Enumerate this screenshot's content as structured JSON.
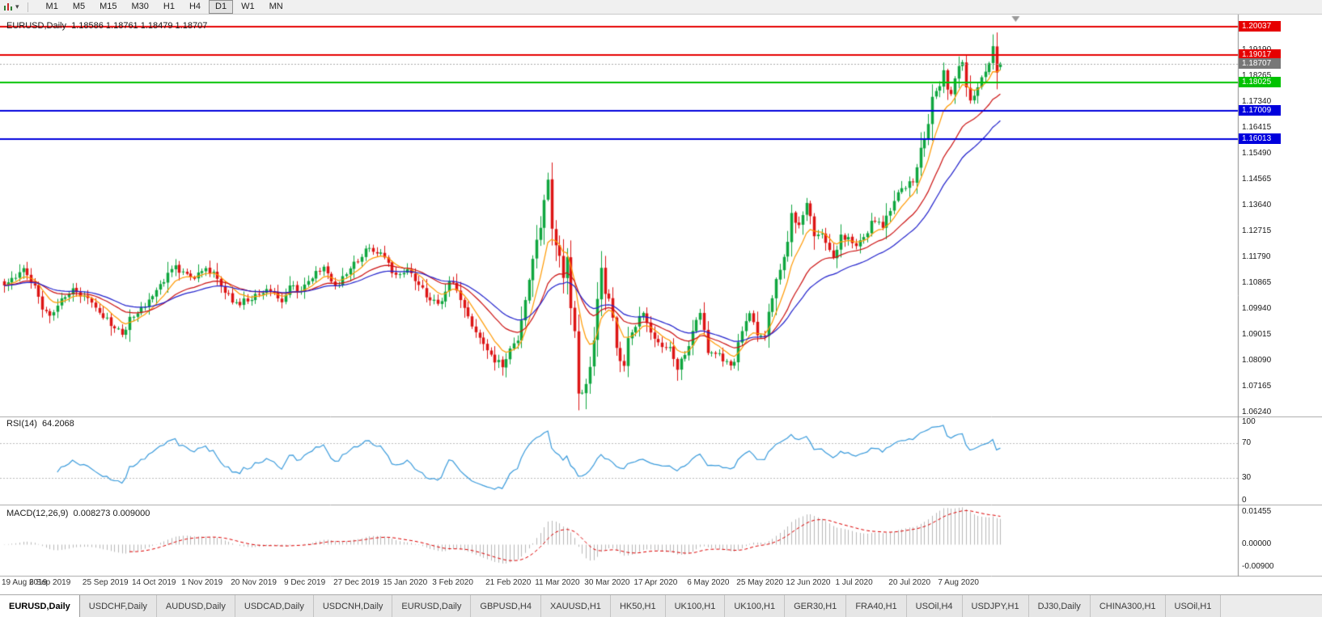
{
  "toolbar": {
    "timeframes": [
      "M1",
      "M5",
      "M15",
      "M30",
      "H1",
      "H4",
      "D1",
      "W1",
      "MN"
    ],
    "active": "D1"
  },
  "chart": {
    "symbol_title": "EURUSD,Daily",
    "ohlc_text": "1.18586 1.18761 1.18479 1.18707",
    "rsi_label": "RSI(14)",
    "rsi_value": "64.2068",
    "macd_label": "MACD(12,26,9)",
    "macd_values": "0.008273 0.009000"
  },
  "chart_data": {
    "type": "candlestick",
    "symbol": "EURUSD",
    "timeframe": "Daily",
    "current_ohlc": {
      "open": 1.18586,
      "high": 1.18761,
      "low": 1.18479,
      "close": 1.18707
    },
    "price_range": {
      "top": 1.2046,
      "bottom": 1.0613
    },
    "y_ticks": [
      "1.19190",
      "1.18265",
      "1.17340",
      "1.16415",
      "1.15490",
      "1.14565",
      "1.13640",
      "1.12715",
      "1.11790",
      "1.10865",
      "1.09940",
      "1.09015",
      "1.08090",
      "1.07165",
      "1.06240"
    ],
    "x_labels": [
      "19 Aug 2019",
      "6 Sep 2019",
      "25 Sep 2019",
      "14 Oct 2019",
      "1 Nov 2019",
      "20 Nov 2019",
      "9 Dec 2019",
      "27 Dec 2019",
      "15 Jan 2020",
      "3 Feb 2020",
      "21 Feb 2020",
      "11 Mar 2020",
      "30 Mar 2020",
      "17 Apr 2020",
      "6 May 2020",
      "25 May 2020",
      "12 Jun 2020",
      "1 Jul 2020",
      "20 Jul 2020",
      "7 Aug 2020"
    ],
    "horizontal_lines": [
      {
        "price": 1.20037,
        "label": "1.20037",
        "color": "#e60000"
      },
      {
        "price": 1.19017,
        "label": "1.19017",
        "color": "#e60000"
      },
      {
        "price": 1.18025,
        "label": "1.18025",
        "color": "#00c200"
      },
      {
        "price": 1.17009,
        "label": "1.17009",
        "color": "#0000dd"
      },
      {
        "price": 1.16013,
        "label": "1.16013",
        "color": "#0000dd"
      }
    ],
    "current_price_tag": {
      "label": "1.18707",
      "color": "#777777"
    },
    "colors": {
      "up": "#0fa63f",
      "down": "#dd1414"
    },
    "moving_averages": [
      {
        "period": 8,
        "color": "#ff9900"
      },
      {
        "period": 21,
        "color": "#cc1111"
      },
      {
        "period": 34,
        "color": "#2121cc"
      }
    ],
    "rsi": {
      "period": 14,
      "color": "#3a9bdc",
      "levels": [
        70,
        30
      ],
      "ticks": [
        "100",
        "70",
        "30",
        "0"
      ]
    },
    "macd": {
      "fast": 12,
      "slow": 26,
      "signal": 9,
      "histogram_color": "#b8b8b8",
      "signal_color": "#dd0000",
      "ticks": [
        "0.01455",
        "0.00000",
        "-0.00900"
      ],
      "range": {
        "top": 0.0152,
        "bottom": -0.0125
      }
    },
    "close_anchors": [
      [
        0,
        1.1078
      ],
      [
        2,
        1.1105
      ],
      [
        5,
        1.114
      ],
      [
        8,
        1.1078
      ],
      [
        10,
        1.0992
      ],
      [
        12,
        1.097
      ],
      [
        15,
        1.1032
      ],
      [
        18,
        1.1068
      ],
      [
        21,
        1.1042
      ],
      [
        23,
        1.1017
      ],
      [
        26,
        1.0962
      ],
      [
        29,
        1.0925
      ],
      [
        31,
        1.0902
      ],
      [
        33,
        1.0966
      ],
      [
        36,
        1.1
      ],
      [
        39,
        1.104
      ],
      [
        42,
        1.109
      ],
      [
        45,
        1.115
      ],
      [
        47,
        1.1128
      ],
      [
        50,
        1.1102
      ],
      [
        53,
        1.114
      ],
      [
        55,
        1.1127
      ],
      [
        58,
        1.1052
      ],
      [
        61,
        1.1018
      ],
      [
        64,
        1.1021
      ],
      [
        67,
        1.1046
      ],
      [
        70,
        1.1058
      ],
      [
        73,
        1.1018
      ],
      [
        75,
        1.1078
      ],
      [
        78,
        1.1059
      ],
      [
        82,
        1.113
      ],
      [
        84,
        1.1145
      ],
      [
        87,
        1.1078
      ],
      [
        90,
        1.1118
      ],
      [
        94,
        1.118
      ],
      [
        96,
        1.1212
      ],
      [
        99,
        1.1196
      ],
      [
        102,
        1.1122
      ],
      [
        106,
        1.1136
      ],
      [
        109,
        1.108
      ],
      [
        112,
        1.1025
      ],
      [
        115,
        1.1022
      ],
      [
        117,
        1.1093
      ],
      [
        119,
        1.106
      ],
      [
        121,
        1.0998
      ],
      [
        124,
        1.0911
      ],
      [
        128,
        1.0831
      ],
      [
        131,
        1.0786
      ],
      [
        133,
        1.0853
      ],
      [
        135,
        1.0881
      ],
      [
        137,
        1.1026
      ],
      [
        139,
        1.1173
      ],
      [
        141,
        1.1284
      ],
      [
        143,
        1.1456
      ],
      [
        144,
        1.1281
      ],
      [
        146,
        1.1184
      ],
      [
        147,
        1.1105
      ],
      [
        148,
        1.118
      ],
      [
        149,
        1.0997
      ],
      [
        150,
        1.0915
      ],
      [
        151,
        1.0692
      ],
      [
        152,
        1.0695
      ],
      [
        153,
        1.0726
      ],
      [
        154,
        1.0787
      ],
      [
        155,
        1.0882
      ],
      [
        156,
        1.103
      ],
      [
        157,
        1.1141
      ],
      [
        158,
        1.1048
      ],
      [
        159,
        1.1031
      ],
      [
        160,
        1.0963
      ],
      [
        161,
        1.0855
      ],
      [
        162,
        1.0808
      ],
      [
        163,
        1.0791
      ],
      [
        164,
        1.089
      ],
      [
        166,
        1.093
      ],
      [
        168,
        1.098
      ],
      [
        170,
        1.091
      ],
      [
        172,
        1.0875
      ],
      [
        175,
        1.0858
      ],
      [
        177,
        1.0777
      ],
      [
        179,
        1.083
      ],
      [
        182,
        1.0955
      ],
      [
        183,
        1.098
      ],
      [
        185,
        1.0837
      ],
      [
        187,
        1.0834
      ],
      [
        189,
        1.0807
      ],
      [
        192,
        1.0805
      ],
      [
        194,
        1.0915
      ],
      [
        196,
        1.0979
      ],
      [
        198,
        1.09
      ],
      [
        200,
        1.0898
      ],
      [
        201,
        1.0984
      ],
      [
        203,
        1.1101
      ],
      [
        204,
        1.1134
      ],
      [
        206,
        1.1234
      ],
      [
        207,
        1.1337
      ],
      [
        209,
        1.1294
      ],
      [
        211,
        1.1373
      ],
      [
        213,
        1.1254
      ],
      [
        215,
        1.1264
      ],
      [
        217,
        1.1205
      ],
      [
        218,
        1.1177
      ],
      [
        220,
        1.126
      ],
      [
        222,
        1.1251
      ],
      [
        224,
        1.1219
      ],
      [
        226,
        1.1251
      ],
      [
        228,
        1.1309
      ],
      [
        231,
        1.1284
      ],
      [
        233,
        1.1344
      ],
      [
        235,
        1.1411
      ],
      [
        237,
        1.1426
      ],
      [
        239,
        1.1447
      ],
      [
        241,
        1.157
      ],
      [
        243,
        1.1655
      ],
      [
        244,
        1.1752
      ],
      [
        246,
        1.179
      ],
      [
        247,
        1.1847
      ],
      [
        248,
        1.1778
      ],
      [
        249,
        1.1762
      ],
      [
        251,
        1.1862
      ],
      [
        252,
        1.1876
      ],
      [
        253,
        1.1786
      ],
      [
        254,
        1.1739
      ],
      [
        256,
        1.1786
      ],
      [
        258,
        1.1842
      ],
      [
        259,
        1.1872
      ],
      [
        260,
        1.1933
      ],
      [
        261,
        1.1839
      ],
      [
        262,
        1.18707
      ]
    ],
    "forced_extremes": [
      {
        "index": 153,
        "low": 1.0636
      },
      {
        "index": 260,
        "high": 1.1975
      }
    ]
  },
  "bottom_tabs": {
    "items": [
      "EURUSD,Daily",
      "USDCHF,Daily",
      "AUDUSD,Daily",
      "USDCAD,Daily",
      "USDCNH,Daily",
      "EURUSD,Daily",
      "GBPUSD,H4",
      "XAUUSD,H1",
      "HK50,H1",
      "UK100,H1",
      "UK100,H1",
      "GER30,H1",
      "FRA40,H1",
      "USOil,H4",
      "USDJPY,H1",
      "DJ30,Daily",
      "CHINA300,H1",
      "USOil,H1"
    ],
    "active_index": 0
  }
}
